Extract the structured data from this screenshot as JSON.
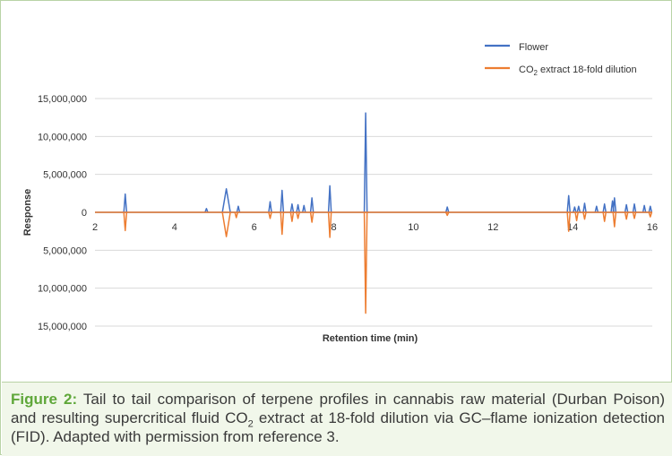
{
  "chart_data": {
    "type": "line",
    "title": "",
    "xlabel": "Retention time (min)",
    "ylabel": "Response",
    "xlim": [
      2,
      16
    ],
    "ylim": [
      -15000000,
      15000000
    ],
    "x_ticks": [
      2,
      4,
      6,
      8,
      10,
      12,
      14,
      16
    ],
    "y_ticks": [
      15000000,
      10000000,
      5000000,
      0,
      -5000000,
      -10000000,
      -15000000
    ],
    "y_tick_labels": [
      "15,000,000",
      "10,000,000",
      "5,000,000",
      "0",
      "5,000,000",
      "10,000,000",
      "15,000,000"
    ],
    "legend_position": "top-right",
    "series": [
      {
        "name": "Flower",
        "color": "#4472c4",
        "direction": "up",
        "peaks": [
          {
            "t": 2.76,
            "h": 2400000
          },
          {
            "t": 4.8,
            "h": 500000
          },
          {
            "t": 5.3,
            "h": 3100000,
            "w": 0.1
          },
          {
            "t": 5.6,
            "h": 800000
          },
          {
            "t": 6.4,
            "h": 1400000
          },
          {
            "t": 6.7,
            "h": 2900000
          },
          {
            "t": 6.95,
            "h": 1100000
          },
          {
            "t": 7.1,
            "h": 1000000
          },
          {
            "t": 7.25,
            "h": 900000
          },
          {
            "t": 7.45,
            "h": 1900000
          },
          {
            "t": 7.9,
            "h": 3500000
          },
          {
            "t": 8.8,
            "h": 13100000
          },
          {
            "t": 10.85,
            "h": 700000
          },
          {
            "t": 13.9,
            "h": 2200000
          },
          {
            "t": 14.05,
            "h": 700000
          },
          {
            "t": 14.15,
            "h": 800000
          },
          {
            "t": 14.3,
            "h": 1200000
          },
          {
            "t": 14.6,
            "h": 800000
          },
          {
            "t": 14.8,
            "h": 1100000
          },
          {
            "t": 15.0,
            "h": 1500000
          },
          {
            "t": 15.05,
            "h": 1900000
          },
          {
            "t": 15.35,
            "h": 1000000
          },
          {
            "t": 15.55,
            "h": 1100000
          },
          {
            "t": 15.8,
            "h": 900000
          },
          {
            "t": 15.95,
            "h": 800000
          }
        ]
      },
      {
        "name": "CO2 extract 18-fold dilution",
        "color": "#ed7d31",
        "direction": "down",
        "peaks": [
          {
            "t": 2.76,
            "h": 2400000
          },
          {
            "t": 5.3,
            "h": 3200000,
            "w": 0.1
          },
          {
            "t": 5.55,
            "h": 700000
          },
          {
            "t": 6.4,
            "h": 800000
          },
          {
            "t": 6.7,
            "h": 2900000
          },
          {
            "t": 6.95,
            "h": 1200000
          },
          {
            "t": 7.1,
            "h": 800000
          },
          {
            "t": 7.45,
            "h": 1300000
          },
          {
            "t": 7.9,
            "h": 3300000
          },
          {
            "t": 8.8,
            "h": 13300000
          },
          {
            "t": 10.85,
            "h": 400000
          },
          {
            "t": 13.9,
            "h": 2500000
          },
          {
            "t": 14.1,
            "h": 1100000
          },
          {
            "t": 14.3,
            "h": 900000
          },
          {
            "t": 14.8,
            "h": 1200000
          },
          {
            "t": 15.05,
            "h": 1900000
          },
          {
            "t": 15.35,
            "h": 900000
          },
          {
            "t": 15.55,
            "h": 800000
          },
          {
            "t": 15.95,
            "h": 600000
          }
        ]
      }
    ]
  },
  "legend": {
    "flower_label": "Flower",
    "co2_prefix": "CO",
    "co2_sub": "2",
    "co2_suffix": " extract 18-fold dilution"
  },
  "caption": {
    "label": "Figure 2:",
    "text_1": " Tail to tail comparison of terpene profiles in cannabis raw material (Durban Poison) and resulting supercritical fluid CO",
    "sub": "2",
    "text_2": " extract at 18-fold dilution via GC–flame ionization detection (FID). Adapted with permission from reference 3."
  }
}
